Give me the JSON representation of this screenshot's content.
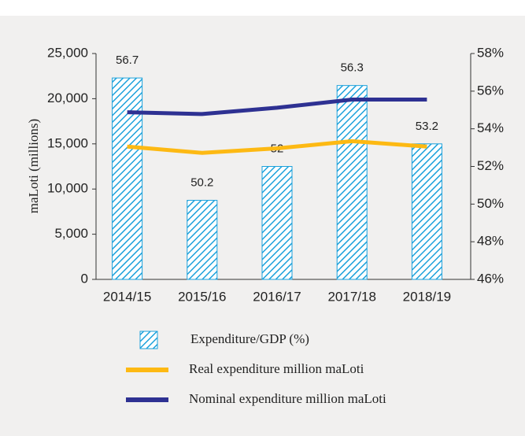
{
  "chart_data": {
    "type": "bar_line",
    "y_axis_label": "maLoti (millions)",
    "categories": [
      "2014/15",
      "2015/16",
      "2016/17",
      "2017/18",
      "2018/19"
    ],
    "series": [
      {
        "name": "Expenditure/GDP (%)",
        "type": "bar",
        "axis": "y2",
        "color": "#1ba1db",
        "values": [
          56.7,
          50.2,
          52,
          56.3,
          53.2
        ]
      },
      {
        "name": "Real expenditure million maLoti",
        "type": "line",
        "axis": "y",
        "color": "#fdb913",
        "values": [
          14700,
          14000,
          14500,
          15300,
          14700
        ]
      },
      {
        "name": "Nominal expenditure million maLoti",
        "type": "line",
        "axis": "y",
        "color": "#2e3192",
        "values": [
          18500,
          18300,
          19000,
          19900,
          19900
        ]
      }
    ],
    "ylim": [
      0,
      25000
    ],
    "yticks": [
      0,
      {
        "value": 5000,
        "label": "5,000"
      },
      {
        "value": 10000,
        "label": "10,000"
      },
      {
        "value": 15000,
        "label": "15,000"
      },
      {
        "value": 20000,
        "label": "20,000"
      },
      {
        "value": 25000,
        "label": "25,000"
      }
    ],
    "y2lim": [
      46,
      58
    ],
    "y2ticks": [
      {
        "value": 46,
        "label": "46%"
      },
      {
        "value": 48,
        "label": "48%"
      },
      {
        "value": 50,
        "label": "50%"
      },
      {
        "value": 52,
        "label": "52%"
      },
      {
        "value": 54,
        "label": "54%"
      },
      {
        "value": 56,
        "label": "56%"
      },
      {
        "value": 58,
        "label": "58%"
      }
    ],
    "legend": "bottom"
  }
}
